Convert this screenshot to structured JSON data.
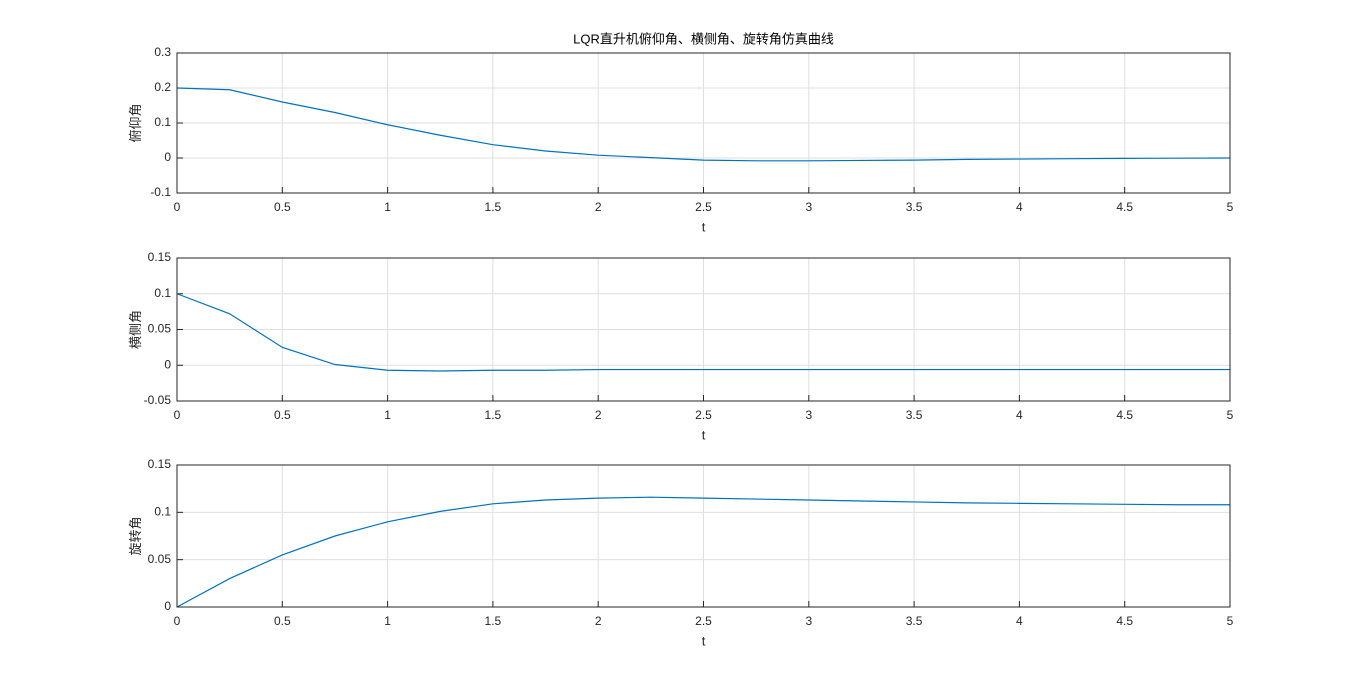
{
  "chart_data": [
    {
      "type": "line",
      "title": "LQR直升机俯仰角、横侧角、旋转角仿真曲线",
      "x_label": "t",
      "y_label": "俯仰角",
      "x": [
        0,
        0.25,
        0.5,
        0.75,
        1,
        1.25,
        1.5,
        1.75,
        2,
        2.25,
        2.5,
        2.75,
        3,
        3.25,
        3.5,
        3.75,
        4,
        4.25,
        4.5,
        4.75,
        5
      ],
      "series": [
        {
          "color": "#0072bd",
          "values": [
            0.2,
            0.195,
            0.16,
            0.13,
            0.095,
            0.065,
            0.038,
            0.02,
            0.008,
            0.001,
            -0.006,
            -0.008,
            -0.008,
            -0.007,
            -0.006,
            -0.004,
            -0.003,
            -0.002,
            -0.001,
            -0.0005,
            0
          ]
        }
      ],
      "xlim": [
        0,
        5
      ],
      "xticks": [
        0,
        0.5,
        1,
        1.5,
        2,
        2.5,
        3,
        3.5,
        4,
        4.5,
        5
      ],
      "ylim": [
        -0.1,
        0.3
      ],
      "yticks": [
        -0.1,
        0,
        0.1,
        0.2,
        0.3
      ],
      "grid": true
    },
    {
      "type": "line",
      "x_label": "t",
      "y_label": "横侧角",
      "x": [
        0,
        0.25,
        0.5,
        0.75,
        1,
        1.25,
        1.5,
        1.75,
        2,
        2.25,
        2.5,
        2.75,
        3,
        3.25,
        3.5,
        3.75,
        4,
        4.25,
        4.5,
        4.75,
        5
      ],
      "series": [
        {
          "color": "#0072bd",
          "values": [
            0.1,
            0.072,
            0.025,
            0.001,
            -0.007,
            -0.008,
            -0.007,
            -0.007,
            -0.006,
            -0.006,
            -0.006,
            -0.006,
            -0.006,
            -0.006,
            -0.006,
            -0.006,
            -0.006,
            -0.006,
            -0.006,
            -0.006,
            -0.006
          ]
        }
      ],
      "xlim": [
        0,
        5
      ],
      "xticks": [
        0,
        0.5,
        1,
        1.5,
        2,
        2.5,
        3,
        3.5,
        4,
        4.5,
        5
      ],
      "ylim": [
        -0.05,
        0.15
      ],
      "yticks": [
        -0.05,
        0,
        0.05,
        0.1,
        0.15
      ],
      "grid": true
    },
    {
      "type": "line",
      "x_label": "t",
      "y_label": "旋转角",
      "x": [
        0,
        0.25,
        0.5,
        0.75,
        1,
        1.25,
        1.5,
        1.75,
        2,
        2.25,
        2.5,
        2.75,
        3,
        3.25,
        3.5,
        3.75,
        4,
        4.25,
        4.5,
        4.75,
        5
      ],
      "series": [
        {
          "color": "#0072bd",
          "values": [
            0,
            0.03,
            0.055,
            0.075,
            0.09,
            0.101,
            0.109,
            0.113,
            0.115,
            0.116,
            0.115,
            0.114,
            0.113,
            0.112,
            0.111,
            0.11,
            0.1095,
            0.109,
            0.1085,
            0.108,
            0.108
          ]
        }
      ],
      "xlim": [
        0,
        5
      ],
      "xticks": [
        0,
        0.5,
        1,
        1.5,
        2,
        2.5,
        3,
        3.5,
        4,
        4.5,
        5
      ],
      "ylim": [
        0,
        0.15
      ],
      "yticks": [
        0,
        0.05,
        0.1,
        0.15
      ],
      "grid": true
    }
  ]
}
